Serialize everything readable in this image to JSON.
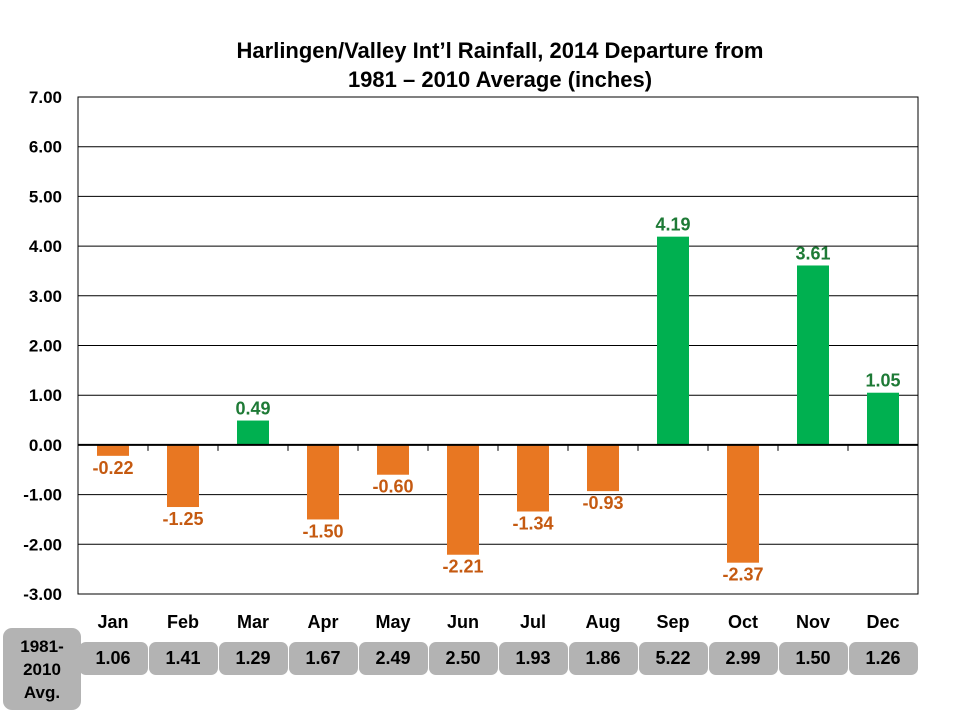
{
  "chart_data": {
    "type": "bar",
    "title_lines": [
      "Harlingen/Valley Int’l Rainfall, 2014 Departure from",
      "1981 – 2010 Average (inches)"
    ],
    "categories": [
      "Jan",
      "Feb",
      "Mar",
      "Apr",
      "May",
      "Jun",
      "Jul",
      "Aug",
      "Sep",
      "Oct",
      "Nov",
      "Dec"
    ],
    "values": [
      -0.22,
      -1.25,
      0.49,
      -1.5,
      -0.6,
      -2.21,
      -1.34,
      -0.93,
      4.19,
      -2.37,
      3.61,
      1.05
    ],
    "value_labels": [
      "-0.22",
      "-1.25",
      "0.49",
      "-1.50",
      "-0.60",
      "-2.21",
      "-1.34",
      "-0.93",
      "4.19",
      "-2.37",
      "3.61",
      "1.05"
    ],
    "ylim": [
      -3,
      7
    ],
    "yticks": [
      "7.00",
      "6.00",
      "5.00",
      "4.00",
      "3.00",
      "2.00",
      "1.00",
      "0.00",
      "-1.00",
      "-2.00",
      "-3.00"
    ],
    "ytick_values": [
      7,
      6,
      5,
      4,
      3,
      2,
      1,
      0,
      -1,
      -2,
      -3
    ],
    "grid": true,
    "colors": {
      "positive": "#00b050",
      "negative": "#e87722",
      "positive_label": "#1e7a36",
      "negative_label": "#c55a11"
    }
  },
  "normals": {
    "label": [
      "1981-",
      "2010",
      "Avg."
    ],
    "values": [
      "1.06",
      "1.41",
      "1.29",
      "1.67",
      "2.49",
      "2.50",
      "1.93",
      "1.86",
      "5.22",
      "2.99",
      "1.50",
      "1.26"
    ]
  }
}
